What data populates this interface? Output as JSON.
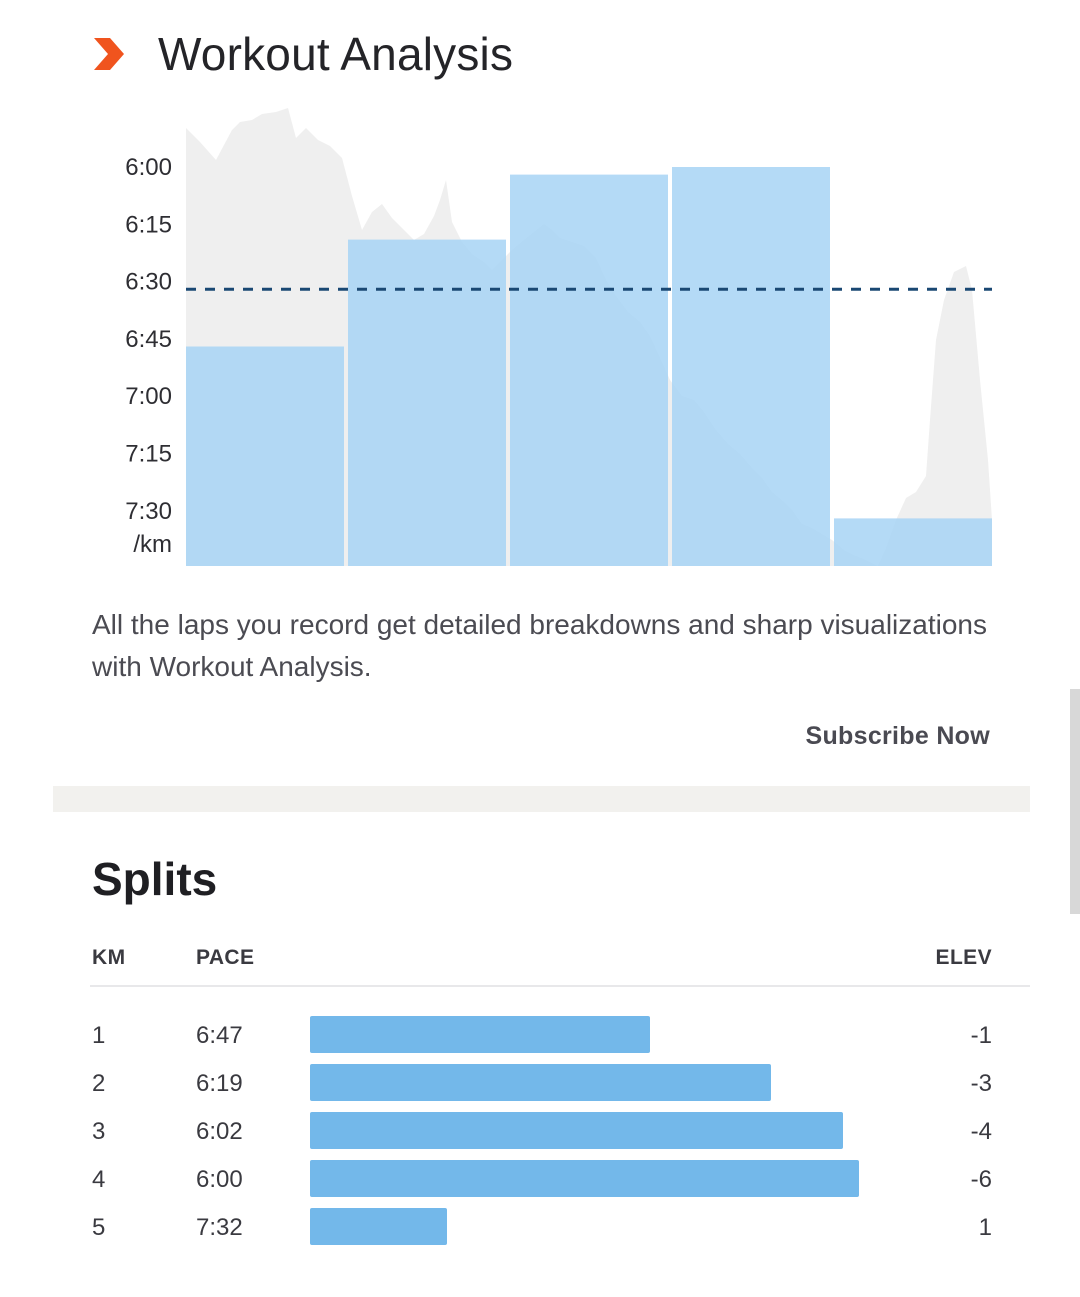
{
  "header": {
    "title": "Workout Analysis",
    "icon": "chevron-right-icon",
    "accent_color": "#f0541e"
  },
  "chart_data": {
    "type": "bar",
    "description_of_axis": "pace per km, faster at top",
    "y_ticks": [
      "6:00",
      "6:15",
      "6:30",
      "6:45",
      "7:00",
      "7:15",
      "7:30"
    ],
    "y_unit": "/km",
    "y_range_seconds": [
      350,
      465
    ],
    "average_pace": "6:32",
    "bars": [
      {
        "lap": 1,
        "pace": "6:47"
      },
      {
        "lap": 2,
        "pace": "6:19"
      },
      {
        "lap": 3,
        "pace": "6:02"
      },
      {
        "lap": 4,
        "pace": "6:00"
      },
      {
        "lap": 5,
        "pace": "7:32"
      }
    ],
    "bar_color": "#a7d3f5",
    "background_area_color": "#efefef",
    "avg_line_color": "#1a4873"
  },
  "description": "All the laps you record get detailed breakdowns and sharp visualizations with Workout Analysis.",
  "subscribe_label": "Subscribe Now",
  "splits": {
    "title": "Splits",
    "headers": {
      "km": "KM",
      "pace": "PACE",
      "elev": "ELEV"
    },
    "bar_color": "#73b8ea",
    "rows": [
      {
        "km": "1",
        "pace": "6:47",
        "elev": "-1",
        "fraction": 0.62
      },
      {
        "km": "2",
        "pace": "6:19",
        "elev": "-3",
        "fraction": 0.84
      },
      {
        "km": "3",
        "pace": "6:02",
        "elev": "-4",
        "fraction": 0.97
      },
      {
        "km": "4",
        "pace": "6:00",
        "elev": "-6",
        "fraction": 1.0
      },
      {
        "km": "5",
        "pace": "7:32",
        "elev": "1",
        "fraction": 0.25
      }
    ]
  }
}
